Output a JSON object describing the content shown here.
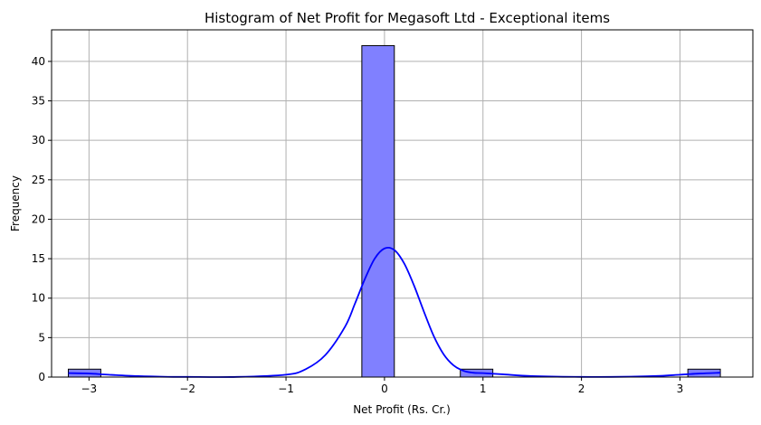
{
  "chart_data": {
    "type": "bar",
    "title": "Histogram of Net Profit for Megasoft Ltd - Exceptional items",
    "xlabel": "Net Profit (Rs. Cr.)",
    "ylabel": "Frequency",
    "xlim": [
      -3.38,
      3.74
    ],
    "ylim": [
      0,
      44
    ],
    "grid": true,
    "bar_color": "#8080ff",
    "bar_edge_color": "#000000",
    "kde_color": "#0000ff",
    "x_ticks": [
      -3,
      -2,
      -1,
      0,
      1,
      2,
      3
    ],
    "x_tick_labels": [
      "−3",
      "−2",
      "−1",
      "0",
      "1",
      "2",
      "3"
    ],
    "y_ticks": [
      0,
      5,
      10,
      15,
      20,
      25,
      30,
      35,
      40
    ],
    "y_tick_labels": [
      "0",
      "5",
      "10",
      "15",
      "20",
      "25",
      "30",
      "35",
      "40"
    ],
    "bins": [
      {
        "x0": -3.21,
        "x1": -2.88,
        "count": 1
      },
      {
        "x0": -0.23,
        "x1": 0.1,
        "count": 42
      },
      {
        "x0": 0.77,
        "x1": 1.1,
        "count": 1
      },
      {
        "x0": 3.08,
        "x1": 3.41,
        "count": 1
      }
    ],
    "kde": {
      "x": [
        -3.21,
        -3.0,
        -2.8,
        -2.5,
        -2.2,
        -2.0,
        -1.5,
        -1.0,
        -0.8,
        -0.6,
        -0.4,
        -0.3,
        -0.2,
        -0.1,
        0.0,
        0.1,
        0.2,
        0.3,
        0.4,
        0.5,
        0.6,
        0.7,
        0.8,
        0.9,
        1.0,
        1.2,
        1.5,
        2.0,
        2.5,
        2.8,
        3.0,
        3.2,
        3.41
      ],
      "y": [
        0.5,
        0.45,
        0.3,
        0.12,
        0.03,
        0.02,
        0.02,
        0.3,
        1.0,
        2.8,
        6.4,
        9.3,
        12.4,
        15.0,
        16.3,
        16.1,
        14.4,
        11.6,
        8.3,
        5.2,
        2.9,
        1.5,
        0.8,
        0.55,
        0.5,
        0.35,
        0.12,
        0.02,
        0.05,
        0.15,
        0.3,
        0.45,
        0.55
      ]
    }
  }
}
